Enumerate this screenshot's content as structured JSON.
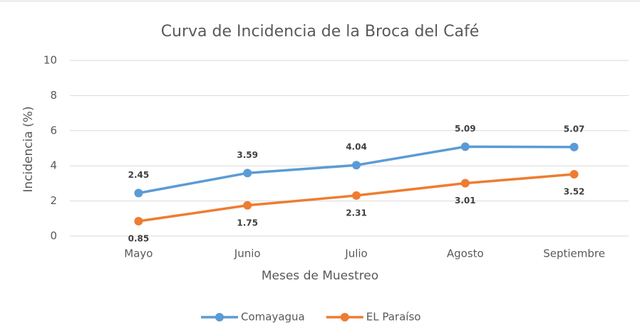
{
  "chart_data": {
    "type": "line",
    "title": "Curva de Incidencia de la Broca del Café",
    "x_label": "Meses de Muestreo",
    "y_label": "Incidencia (%)",
    "categories": [
      "Mayo",
      "Junio",
      "Julio",
      "Agosto",
      "Septiembre"
    ],
    "series": [
      {
        "name": "Comayagua",
        "color": "#5b9bd5",
        "values": [
          2.45,
          3.59,
          4.04,
          5.09,
          5.07
        ]
      },
      {
        "name": "EL Paraíso",
        "color": "#ed7d31",
        "values": [
          0.85,
          1.75,
          2.31,
          3.01,
          3.52
        ]
      }
    ],
    "ylim": [
      0,
      10
    ],
    "yticks": [
      0,
      2,
      4,
      6,
      8,
      10
    ],
    "grid": true,
    "legend": "bottom"
  }
}
